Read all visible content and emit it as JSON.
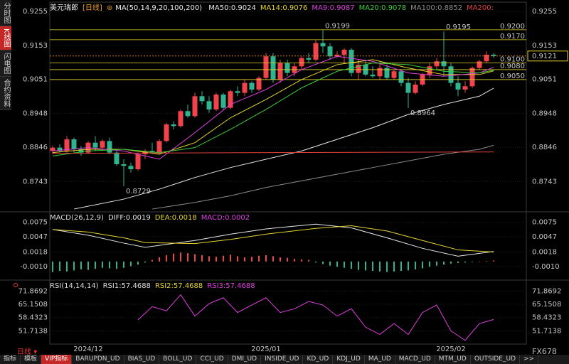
{
  "header": {
    "symbol": "美元瑞郎",
    "period": "[日线]",
    "ma_params": "MA(50,14,9,20,100,200)"
  },
  "sidebar": [
    "分时图",
    "K线图",
    "闪电图",
    "合约资料"
  ],
  "footer": {
    "period": "日线",
    "brand": "FX678",
    "tabs": [
      "指标",
      "模板",
      "VIP指标",
      "BARUPDN_UD",
      "BIAS_UD",
      "BOLL_UD",
      "CCI_UD",
      "DMI_UD",
      "INSIDE_UD",
      "KD_UD",
      "KDJ_UD",
      "MA_UD",
      "MACD_UD",
      "MTM_UD",
      "OUTSIDE_UD",
      ">>"
    ]
  },
  "chart_data": [
    {
      "type": "candlestick",
      "categories": [
        null,
        null,
        null,
        null,
        null,
        "2024/12",
        null,
        null,
        null,
        null,
        null,
        null,
        null,
        null,
        null,
        null,
        null,
        null,
        null,
        null,
        null,
        null,
        null,
        null,
        null,
        null,
        null,
        null,
        null,
        null,
        "2025/01",
        null,
        null,
        null,
        null,
        null,
        null,
        null,
        null,
        null,
        null,
        null,
        null,
        null,
        null,
        null,
        null,
        null,
        null,
        null,
        null,
        null,
        null,
        null,
        null,
        null,
        "2025/02",
        null,
        null,
        null,
        null,
        null,
        null
      ],
      "open": [
        0.8835,
        0.8845,
        0.8835,
        0.887,
        0.884,
        0.883,
        0.886,
        0.8845,
        0.8865,
        0.883,
        0.8795,
        0.879,
        0.878,
        0.8825,
        0.8835,
        0.883,
        0.8865,
        0.8915,
        0.891,
        0.8955,
        0.894,
        0.9,
        0.8985,
        0.896,
        0.9005,
        0.8965,
        0.9015,
        0.901,
        0.904,
        0.902,
        0.9055,
        0.912,
        0.905,
        0.91,
        0.907,
        0.909,
        0.9115,
        0.911,
        0.916,
        0.915,
        0.912,
        0.9125,
        0.914,
        0.907,
        0.9095,
        0.9065,
        0.906,
        0.9085,
        0.9055,
        0.9075,
        0.904,
        0.901,
        0.9035,
        0.9065,
        0.909,
        0.9105,
        0.909,
        0.904,
        0.902,
        0.903,
        0.9085,
        0.9105,
        0.9125
      ],
      "high": [
        0.885,
        0.8855,
        0.888,
        0.8875,
        0.885,
        0.8865,
        0.888,
        0.887,
        0.8875,
        0.8835,
        0.881,
        0.88,
        0.883,
        0.884,
        0.886,
        0.887,
        0.892,
        0.8925,
        0.896,
        0.8975,
        0.901,
        0.9015,
        0.9,
        0.901,
        0.901,
        0.902,
        0.903,
        0.905,
        0.9045,
        0.906,
        0.913,
        0.913,
        0.911,
        0.911,
        0.91,
        0.912,
        0.913,
        0.917,
        0.9199,
        0.916,
        0.9135,
        0.9145,
        0.9145,
        0.911,
        0.911,
        0.909,
        0.91,
        0.9095,
        0.908,
        0.908,
        0.9055,
        0.9045,
        0.907,
        0.91,
        0.9115,
        0.9195,
        0.91,
        0.906,
        0.9045,
        0.909,
        0.911,
        0.9135,
        0.913
      ],
      "low": [
        0.8825,
        0.883,
        0.883,
        0.883,
        0.882,
        0.8825,
        0.8835,
        0.884,
        0.8825,
        0.879,
        0.8729,
        0.877,
        0.8775,
        0.881,
        0.8825,
        0.8825,
        0.886,
        0.89,
        0.8905,
        0.8935,
        0.8935,
        0.8975,
        0.895,
        0.8955,
        0.896,
        0.896,
        0.9,
        0.9,
        0.901,
        0.9015,
        0.905,
        0.904,
        0.904,
        0.906,
        0.906,
        0.908,
        0.91,
        0.9105,
        0.913,
        0.911,
        0.9115,
        0.91,
        0.906,
        0.905,
        0.906,
        0.9055,
        0.905,
        0.905,
        0.905,
        0.903,
        0.8964,
        0.9005,
        0.903,
        0.9055,
        0.908,
        0.906,
        0.903,
        0.9,
        0.901,
        0.9025,
        0.908,
        0.91,
        0.9115
      ],
      "close": [
        0.8845,
        0.8835,
        0.887,
        0.884,
        0.883,
        0.886,
        0.8845,
        0.8865,
        0.883,
        0.8795,
        0.879,
        0.878,
        0.8825,
        0.8835,
        0.883,
        0.8865,
        0.8915,
        0.891,
        0.8955,
        0.894,
        0.9,
        0.8985,
        0.896,
        0.9005,
        0.8965,
        0.9015,
        0.901,
        0.904,
        0.902,
        0.9055,
        0.912,
        0.905,
        0.91,
        0.907,
        0.909,
        0.9115,
        0.911,
        0.916,
        0.915,
        0.912,
        0.9125,
        0.914,
        0.907,
        0.9095,
        0.9065,
        0.906,
        0.9085,
        0.9055,
        0.9075,
        0.904,
        0.901,
        0.9035,
        0.9065,
        0.909,
        0.9105,
        0.909,
        0.904,
        0.902,
        0.903,
        0.9085,
        0.9105,
        0.9125,
        0.9121
      ],
      "up_color": "#f0434a",
      "down_color": "#2fb48f",
      "ylim": [
        0.8658,
        0.9279
      ],
      "yticks": [
        0.8743,
        0.8846,
        0.8948,
        0.9051,
        0.9153,
        0.9255
      ],
      "series": [
        {
          "name": "MA50:0.9024",
          "color": "#e8e8e8",
          "x": [
            3,
            10,
            15,
            20,
            25,
            30,
            35,
            40,
            45,
            50,
            55,
            60,
            62
          ],
          "values": [
            0.866,
            0.869,
            0.872,
            0.8755,
            0.8785,
            0.881,
            0.8835,
            0.887,
            0.8905,
            0.8945,
            0.8975,
            0.9,
            0.9024
          ]
        },
        {
          "name": "MA14:0.9076",
          "color": "#e6d52e",
          "x": [
            0,
            5,
            10,
            15,
            20,
            25,
            30,
            35,
            40,
            45,
            50,
            55,
            60,
            62
          ],
          "values": [
            0.883,
            0.884,
            0.884,
            0.8825,
            0.886,
            0.8935,
            0.899,
            0.905,
            0.9095,
            0.911,
            0.9085,
            0.9065,
            0.9065,
            0.9076
          ]
        },
        {
          "name": "MA9:0.9087",
          "color": "#e040e0",
          "x": [
            0,
            5,
            10,
            15,
            20,
            25,
            30,
            35,
            40,
            45,
            50,
            55,
            60,
            62
          ],
          "values": [
            0.8835,
            0.8845,
            0.8835,
            0.881,
            0.889,
            0.8975,
            0.902,
            0.908,
            0.912,
            0.9105,
            0.907,
            0.906,
            0.907,
            0.9087
          ]
        },
        {
          "name": "MA20:0.9078",
          "color": "#3ccf3c",
          "x": [
            0,
            5,
            10,
            15,
            20,
            25,
            30,
            35,
            40,
            45,
            50,
            55,
            60,
            62
          ],
          "values": [
            0.882,
            0.8835,
            0.884,
            0.883,
            0.8845,
            0.89,
            0.896,
            0.9025,
            0.9075,
            0.91,
            0.9095,
            0.9075,
            0.907,
            0.9078
          ]
        },
        {
          "name": "MA100:0.8852",
          "color": "#8c8c8c",
          "x": [
            14,
            20,
            25,
            30,
            35,
            40,
            45,
            50,
            55,
            60,
            62
          ],
          "values": [
            0.866,
            0.868,
            0.87,
            0.8725,
            0.8745,
            0.8765,
            0.8785,
            0.8805,
            0.8825,
            0.884,
            0.8852
          ]
        },
        {
          "name": "MA200:",
          "color": "#e0403a",
          "x": [
            0,
            62
          ],
          "values": [
            0.8828,
            0.8832
          ]
        }
      ],
      "levels": [
        {
          "value": 0.92,
          "label": "0.9200"
        },
        {
          "value": 0.917,
          "label": "0.9170"
        },
        {
          "value": 0.91,
          "label": "0.9100"
        },
        {
          "value": 0.908,
          "label": "0.9080"
        },
        {
          "value": 0.905,
          "label": "0.9050"
        }
      ],
      "level_color": "#e6d52e",
      "last_price": {
        "value": 0.9121,
        "label": "0.9121"
      },
      "annotations": [
        {
          "label": "0.8729",
          "x": 10,
          "y": 0.8729
        },
        {
          "label": "0.9199",
          "x": 38,
          "y": 0.9199
        },
        {
          "label": "0.8964",
          "x": 50,
          "y": 0.8964
        },
        {
          "label": "0.9195",
          "x": 55,
          "y": 0.9195
        }
      ]
    },
    {
      "type": "macd",
      "title": "MACD(26,12,9)",
      "series": [
        {
          "name": "DIFF:0.0019",
          "color": "#e8e8e8",
          "x": [
            0,
            5,
            10,
            13,
            20,
            25,
            30,
            37,
            42,
            47,
            52,
            57,
            62
          ],
          "values": [
            0.0061,
            0.005,
            0.0035,
            0.0027,
            0.004,
            0.0052,
            0.0062,
            0.0071,
            0.0064,
            0.0045,
            0.0025,
            0.001,
            0.0019
          ]
        },
        {
          "name": "DEA:0.0018",
          "color": "#e6d52e",
          "x": [
            0,
            5,
            10,
            13,
            20,
            25,
            30,
            37,
            42,
            47,
            52,
            57,
            62
          ],
          "values": [
            0.0061,
            0.0056,
            0.0045,
            0.0036,
            0.0034,
            0.0042,
            0.0052,
            0.0063,
            0.0068,
            0.0058,
            0.004,
            0.0022,
            0.0018
          ]
        }
      ],
      "histogram": {
        "name": "MACD:0.0002",
        "color": "#e040e0",
        "values": [
          -0.002,
          -0.0018,
          -0.0019,
          -0.0017,
          -0.0015,
          -0.0016,
          -0.0014,
          -0.0012,
          -0.0013,
          -0.0014,
          -0.0012,
          -0.0009,
          -0.0006,
          -0.0002,
          0.0003,
          0.0008,
          0.0012,
          0.0015,
          0.0017,
          0.0016,
          0.0014,
          0.0012,
          0.001,
          0.0009,
          0.0011,
          0.0013,
          0.001,
          0.0008,
          0.0009,
          0.0011,
          0.0012,
          0.001,
          0.0008,
          0.0007,
          0.0005,
          0.0004,
          0.0003,
          -0.0002,
          -0.0005,
          -0.0008,
          -0.001,
          -0.0012,
          -0.0014,
          -0.0016,
          -0.0017,
          -0.0018,
          -0.0019,
          -0.002,
          -0.0019,
          -0.0018,
          -0.0017,
          -0.0015,
          -0.0013,
          -0.001,
          -0.0008,
          -0.0006,
          -0.0004,
          -0.0003,
          -0.0002,
          -0.0001,
          0.0,
          0.0001,
          0.0002
        ]
      },
      "ylim": [
        -0.003,
        0.0089
      ],
      "yticks": [
        0.0075,
        0.0047,
        0.0018,
        {
          "value": -0.001,
          "label": "-0.0010"
        }
      ]
    },
    {
      "type": "line",
      "title": "RSI(14,14,14)",
      "series": [
        {
          "name": "RSI1:57.4688",
          "color": "#e040e0",
          "x": [
            12,
            14,
            16,
            18,
            20,
            22,
            24,
            26,
            28,
            30,
            32,
            34,
            36,
            38,
            40,
            42,
            44,
            46,
            48,
            50,
            52,
            54,
            56,
            58,
            60,
            62
          ],
          "values": [
            57.3,
            64.0,
            61.8,
            70.0,
            59.2,
            65.5,
            68.5,
            61.0,
            64.8,
            68.5,
            61.0,
            62.9,
            66.6,
            64.8,
            59.2,
            62.9,
            53.6,
            49.9,
            55.4,
            49.9,
            61.0,
            64.8,
            51.7,
            46.9,
            55.4,
            57.4688
          ]
        }
      ],
      "legend": [
        {
          "name": "RSI2:57.4688",
          "color": "#e6d52e"
        },
        {
          "name": "RSI3:57.4688",
          "color": "#e040e0"
        }
      ],
      "ylim": [
        45.37,
        75.97
      ],
      "yticks": [
        71.8692,
        65.1508,
        58.4323,
        51.7138
      ]
    }
  ]
}
